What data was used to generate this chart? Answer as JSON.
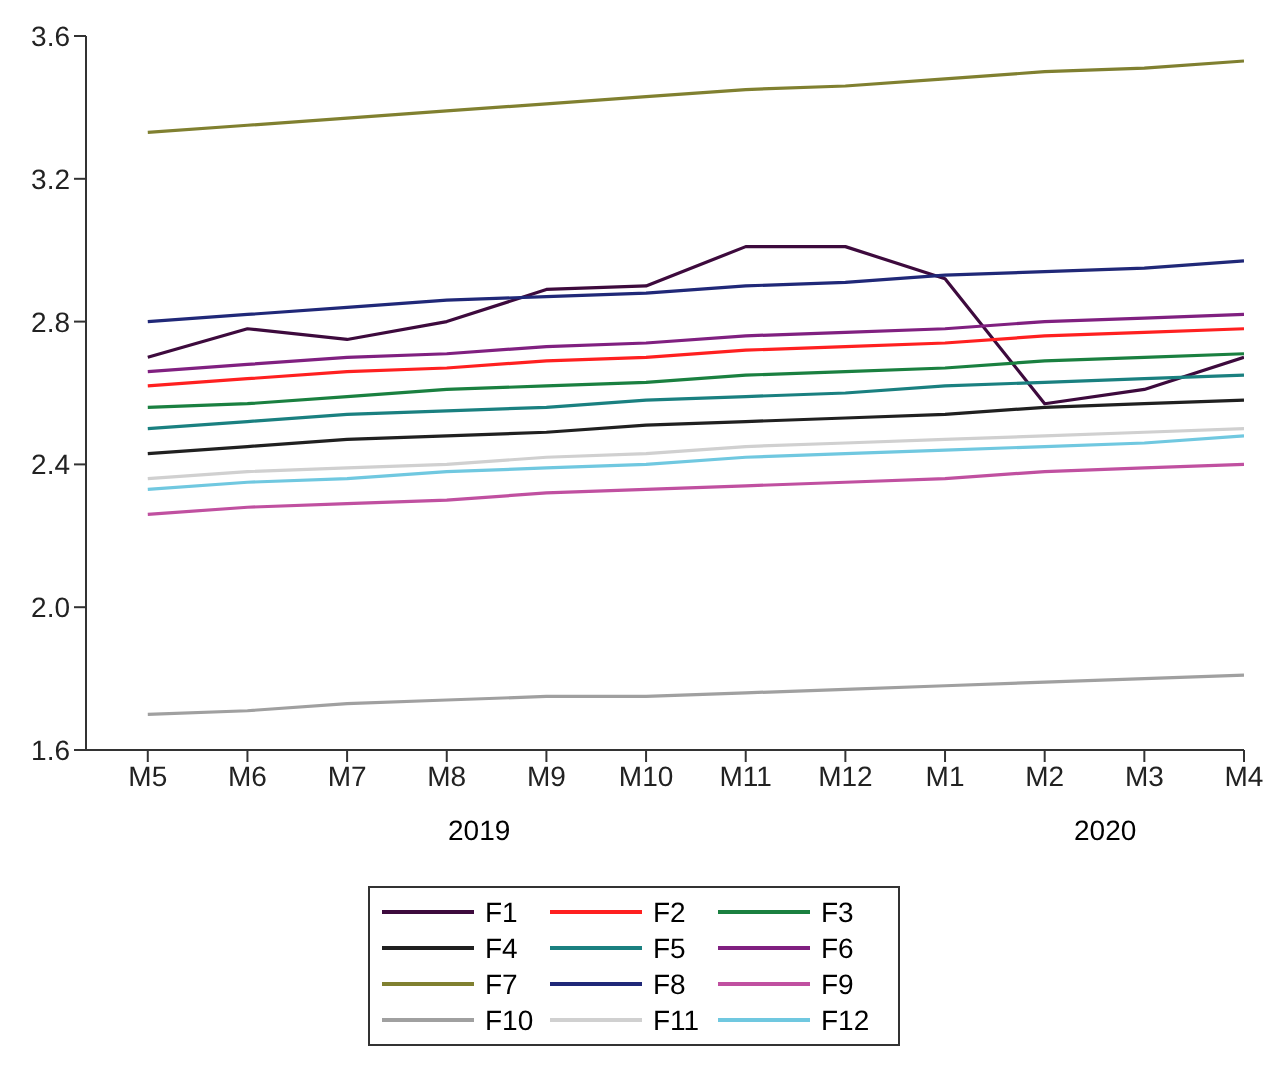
{
  "chart_data": {
    "type": "line",
    "categories": [
      "M5",
      "M6",
      "M7",
      "M8",
      "M9",
      "M10",
      "M11",
      "M12",
      "M1",
      "M2",
      "M3",
      "M4"
    ],
    "ylim": [
      1.6,
      3.6
    ],
    "yticks": [
      {
        "value": 1.6,
        "label": "1.6"
      },
      {
        "value": 2.0,
        "label": "2.0"
      },
      {
        "value": 2.4,
        "label": "2.4"
      },
      {
        "value": 2.8,
        "label": "2.8"
      },
      {
        "value": 3.2,
        "label": "3.2"
      },
      {
        "value": 3.6,
        "label": "3.6"
      }
    ],
    "grid": false,
    "legend": "bottom",
    "marker": "none",
    "line_style": "solid",
    "annotations": [
      "2019",
      "2020"
    ],
    "series": [
      {
        "name": "F1",
        "color": "#3d0a3d",
        "values": [
          2.7,
          2.78,
          2.75,
          2.8,
          2.89,
          2.9,
          3.01,
          3.01,
          2.92,
          2.57,
          2.61,
          2.7
        ]
      },
      {
        "name": "F2",
        "color": "#ff2020",
        "values": [
          2.62,
          2.64,
          2.66,
          2.67,
          2.69,
          2.7,
          2.72,
          2.73,
          2.74,
          2.76,
          2.77,
          2.78
        ]
      },
      {
        "name": "F3",
        "color": "#1a8040",
        "values": [
          2.56,
          2.57,
          2.59,
          2.61,
          2.62,
          2.63,
          2.65,
          2.66,
          2.67,
          2.69,
          2.7,
          2.71
        ]
      },
      {
        "name": "F4",
        "color": "#202020",
        "values": [
          2.43,
          2.45,
          2.47,
          2.48,
          2.49,
          2.51,
          2.52,
          2.53,
          2.54,
          2.56,
          2.57,
          2.58
        ]
      },
      {
        "name": "F5",
        "color": "#1a8080",
        "values": [
          2.5,
          2.52,
          2.54,
          2.55,
          2.56,
          2.58,
          2.59,
          2.6,
          2.62,
          2.63,
          2.64,
          2.65
        ]
      },
      {
        "name": "F6",
        "color": "#802080",
        "values": [
          2.66,
          2.68,
          2.7,
          2.71,
          2.73,
          2.74,
          2.76,
          2.77,
          2.78,
          2.8,
          2.81,
          2.82
        ]
      },
      {
        "name": "F7",
        "color": "#808030",
        "values": [
          3.33,
          3.35,
          3.37,
          3.39,
          3.41,
          3.43,
          3.45,
          3.46,
          3.48,
          3.5,
          3.51,
          3.53
        ]
      },
      {
        "name": "F8",
        "color": "#202878",
        "values": [
          2.8,
          2.82,
          2.84,
          2.86,
          2.87,
          2.88,
          2.9,
          2.91,
          2.93,
          2.94,
          2.95,
          2.97
        ]
      },
      {
        "name": "F9",
        "color": "#c050a0",
        "values": [
          2.26,
          2.28,
          2.29,
          2.3,
          2.32,
          2.33,
          2.34,
          2.35,
          2.36,
          2.38,
          2.39,
          2.4
        ]
      },
      {
        "name": "F10",
        "color": "#a0a0a0",
        "values": [
          1.7,
          1.71,
          1.73,
          1.74,
          1.75,
          1.75,
          1.76,
          1.77,
          1.78,
          1.79,
          1.8,
          1.81
        ]
      },
      {
        "name": "F11",
        "color": "#d0d0d0",
        "values": [
          2.36,
          2.38,
          2.39,
          2.4,
          2.42,
          2.43,
          2.45,
          2.46,
          2.47,
          2.48,
          2.49,
          2.5
        ]
      },
      {
        "name": "F12",
        "color": "#70c8e0",
        "values": [
          2.33,
          2.35,
          2.36,
          2.38,
          2.39,
          2.4,
          2.42,
          2.43,
          2.44,
          2.45,
          2.46,
          2.48
        ]
      }
    ]
  }
}
